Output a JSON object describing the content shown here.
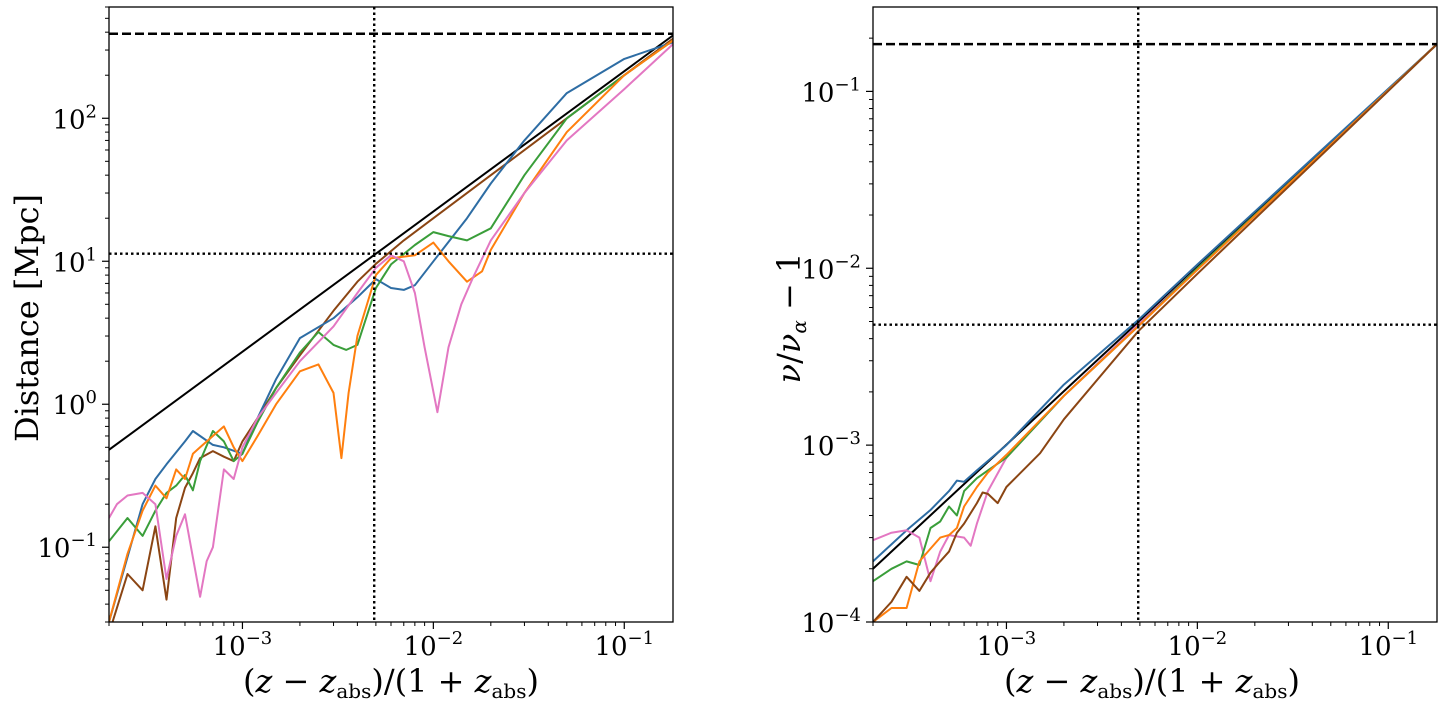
{
  "chart_data": [
    {
      "type": "line",
      "xscale": "log",
      "yscale": "log",
      "xlim": [
        0.0002,
        0.18
      ],
      "ylim": [
        0.03,
        600
      ],
      "xlabel": "(z − z_abs)/(1 + z_abs)",
      "ylabel": "Distance [Mpc]",
      "xticks": [
        {
          "value": 0.001,
          "label": "10−3",
          "base": "10",
          "exp": "−3"
        },
        {
          "value": 0.01,
          "label": "10−2",
          "base": "10",
          "exp": "−2"
        },
        {
          "value": 0.1,
          "label": "10−1",
          "base": "10",
          "exp": "−1"
        }
      ],
      "yticks": [
        {
          "value": 0.1,
          "label": "10−1",
          "base": "10",
          "exp": "−1"
        },
        {
          "value": 1,
          "label": "100",
          "base": "10",
          "exp": "0"
        },
        {
          "value": 10,
          "label": "101",
          "base": "10",
          "exp": "1"
        },
        {
          "value": 100,
          "label": "102",
          "base": "10",
          "exp": "2"
        }
      ],
      "hlines": [
        {
          "y": 390,
          "style": "dashed"
        },
        {
          "y": 11.3,
          "style": "dotted"
        }
      ],
      "vlines": [
        {
          "x": 0.0049,
          "style": "dotted"
        }
      ],
      "series": [
        {
          "name": "black",
          "color": "#000000",
          "x": [
            0.0002,
            0.18
          ],
          "y": [
            0.48,
            380
          ]
        },
        {
          "name": "brown",
          "color": "#8B4513",
          "x": [
            0.0002,
            0.00025,
            0.0003,
            0.00035,
            0.0004,
            0.00045,
            0.0005,
            0.00055,
            0.0006,
            0.0007,
            0.0008,
            0.0009,
            0.001,
            0.0012,
            0.0015,
            0.002,
            0.003,
            0.004,
            0.005,
            0.007,
            0.01,
            0.02,
            0.05,
            0.1,
            0.18
          ],
          "y": [
            0.025,
            0.065,
            0.05,
            0.14,
            0.043,
            0.16,
            0.26,
            0.33,
            0.42,
            0.47,
            0.43,
            0.4,
            0.55,
            0.8,
            1.3,
            2.2,
            4.5,
            7.2,
            9.6,
            14,
            20,
            40,
            100,
            200,
            360
          ]
        },
        {
          "name": "blue",
          "color": "#2E6DA4",
          "x": [
            0.0002,
            0.0003,
            0.00035,
            0.0004,
            0.0005,
            0.00055,
            0.0006,
            0.0007,
            0.0008,
            0.001,
            0.0012,
            0.0015,
            0.002,
            0.003,
            0.004,
            0.005,
            0.006,
            0.007,
            0.008,
            0.01,
            0.015,
            0.02,
            0.03,
            0.05,
            0.1,
            0.18
          ],
          "y": [
            0.03,
            0.2,
            0.3,
            0.38,
            0.55,
            0.65,
            0.6,
            0.52,
            0.5,
            0.45,
            0.8,
            1.5,
            2.9,
            4.0,
            5.6,
            7.5,
            6.5,
            6.3,
            6.8,
            10,
            20,
            35,
            70,
            150,
            260,
            340
          ]
        },
        {
          "name": "green",
          "color": "#3A9E3A",
          "x": [
            0.0002,
            0.00025,
            0.0003,
            0.00035,
            0.0004,
            0.00045,
            0.0005,
            0.00055,
            0.0006,
            0.0007,
            0.0008,
            0.0009,
            0.001,
            0.0012,
            0.0015,
            0.002,
            0.0025,
            0.003,
            0.0035,
            0.004,
            0.005,
            0.006,
            0.008,
            0.01,
            0.012,
            0.015,
            0.02,
            0.03,
            0.05,
            0.1,
            0.18
          ],
          "y": [
            0.11,
            0.16,
            0.12,
            0.18,
            0.24,
            0.27,
            0.32,
            0.25,
            0.4,
            0.65,
            0.55,
            0.4,
            0.45,
            0.75,
            1.3,
            2.3,
            3.2,
            2.6,
            2.4,
            2.6,
            6.5,
            9.5,
            13,
            16,
            15,
            14,
            17,
            40,
            100,
            200,
            350
          ]
        },
        {
          "name": "orange",
          "color": "#FF7F0E",
          "x": [
            0.0002,
            0.00025,
            0.0003,
            0.00035,
            0.0004,
            0.00045,
            0.0005,
            0.00055,
            0.0006,
            0.0007,
            0.0008,
            0.0009,
            0.001,
            0.0012,
            0.0015,
            0.002,
            0.0025,
            0.003,
            0.0033,
            0.0036,
            0.004,
            0.005,
            0.006,
            0.008,
            0.01,
            0.012,
            0.015,
            0.018,
            0.02,
            0.03,
            0.05,
            0.1,
            0.18
          ],
          "y": [
            0.03,
            0.09,
            0.18,
            0.27,
            0.22,
            0.35,
            0.3,
            0.45,
            0.5,
            0.6,
            0.7,
            0.5,
            0.4,
            0.6,
            1.0,
            1.7,
            1.9,
            1.2,
            0.42,
            1.2,
            3.0,
            8.0,
            10.5,
            11,
            13.5,
            10,
            7.2,
            8.5,
            12,
            30,
            80,
            200,
            350
          ]
        },
        {
          "name": "pink",
          "color": "#E377C2",
          "x": [
            0.0002,
            0.00022,
            0.00025,
            0.0003,
            0.00035,
            0.0004,
            0.00045,
            0.0005,
            0.0006,
            0.00065,
            0.0007,
            0.0008,
            0.0009,
            0.001,
            0.0012,
            0.0015,
            0.002,
            0.003,
            0.004,
            0.005,
            0.006,
            0.007,
            0.008,
            0.009,
            0.0105,
            0.012,
            0.014,
            0.016,
            0.02,
            0.03,
            0.05,
            0.1,
            0.18
          ],
          "y": [
            0.16,
            0.2,
            0.23,
            0.24,
            0.2,
            0.06,
            0.12,
            0.17,
            0.045,
            0.08,
            0.1,
            0.35,
            0.3,
            0.5,
            0.8,
            1.2,
            2.0,
            3.5,
            6.0,
            9.0,
            11,
            10,
            6.0,
            2.5,
            0.88,
            2.5,
            5.0,
            7.5,
            14,
            30,
            70,
            160,
            330
          ]
        }
      ]
    },
    {
      "type": "line",
      "xscale": "log",
      "yscale": "log",
      "xlim": [
        0.0002,
        0.18
      ],
      "ylim": [
        0.0001,
        0.3
      ],
      "xlabel": "(z − z_abs)/(1 + z_abs)",
      "ylabel": "ν/ν_α − 1",
      "xticks": [
        {
          "value": 0.001,
          "label": "10−3",
          "base": "10",
          "exp": "−3"
        },
        {
          "value": 0.01,
          "label": "10−2",
          "base": "10",
          "exp": "−2"
        },
        {
          "value": 0.1,
          "label": "10−1",
          "base": "10",
          "exp": "−1"
        }
      ],
      "yticks": [
        {
          "value": 0.0001,
          "label": "10−4",
          "base": "10",
          "exp": "−4"
        },
        {
          "value": 0.001,
          "label": "10−3",
          "base": "10",
          "exp": "−3"
        },
        {
          "value": 0.01,
          "label": "10−2",
          "base": "10",
          "exp": "−2"
        },
        {
          "value": 0.1,
          "label": "10−1",
          "base": "10",
          "exp": "−1"
        }
      ],
      "hlines": [
        {
          "y": 0.185,
          "style": "dashed"
        },
        {
          "y": 0.0048,
          "style": "dotted"
        }
      ],
      "vlines": [
        {
          "x": 0.0049,
          "style": "dotted"
        }
      ],
      "series": [
        {
          "name": "black",
          "color": "#000000",
          "x": [
            0.0002,
            0.18
          ],
          "y": [
            0.0002,
            0.185
          ]
        },
        {
          "name": "blue",
          "color": "#2E6DA4",
          "x": [
            0.0002,
            0.0003,
            0.0004,
            0.0005,
            0.00055,
            0.0006,
            0.0007,
            0.001,
            0.002,
            0.0049,
            0.01,
            0.05,
            0.18
          ],
          "y": [
            0.00022,
            0.00033,
            0.00043,
            0.00055,
            0.00063,
            0.00062,
            0.00072,
            0.001,
            0.0022,
            0.0051,
            0.0105,
            0.052,
            0.185
          ]
        },
        {
          "name": "pink",
          "color": "#E377C2",
          "x": [
            0.0002,
            0.00025,
            0.0003,
            0.00035,
            0.0004,
            0.00045,
            0.0005,
            0.0006,
            0.00065,
            0.0007,
            0.0008,
            0.001,
            0.002,
            0.0049,
            0.01,
            0.05,
            0.18
          ],
          "y": [
            0.00029,
            0.00032,
            0.00033,
            0.0003,
            0.00017,
            0.00025,
            0.00031,
            0.0003,
            0.00027,
            0.00036,
            0.00055,
            0.00085,
            0.0019,
            0.0048,
            0.01,
            0.05,
            0.185
          ]
        },
        {
          "name": "green",
          "color": "#3A9E3A",
          "x": [
            0.0002,
            0.00025,
            0.0003,
            0.00035,
            0.0004,
            0.00045,
            0.0005,
            0.00055,
            0.0006,
            0.0007,
            0.0008,
            0.001,
            0.002,
            0.0049,
            0.01,
            0.05,
            0.18
          ],
          "y": [
            0.00017,
            0.0002,
            0.00022,
            0.00021,
            0.00034,
            0.00037,
            0.00045,
            0.0004,
            0.00055,
            0.00065,
            0.00072,
            0.00085,
            0.0019,
            0.0047,
            0.01,
            0.05,
            0.185
          ]
        },
        {
          "name": "orange",
          "color": "#FF7F0E",
          "x": [
            0.0002,
            0.00025,
            0.0003,
            0.00035,
            0.0004,
            0.00045,
            0.0005,
            0.00055,
            0.0006,
            0.0007,
            0.0008,
            0.001,
            0.002,
            0.0049,
            0.01,
            0.05,
            0.18
          ],
          "y": [
            0.0001,
            0.00012,
            0.00012,
            0.00022,
            0.00026,
            0.0003,
            0.00031,
            0.00034,
            0.00045,
            0.00058,
            0.0007,
            0.00088,
            0.0019,
            0.0047,
            0.0098,
            0.05,
            0.185
          ]
        },
        {
          "name": "brown",
          "color": "#8B4513",
          "x": [
            0.0002,
            0.00025,
            0.0003,
            0.00035,
            0.0004,
            0.00045,
            0.0005,
            0.00055,
            0.0006,
            0.0007,
            0.00075,
            0.0008,
            0.0009,
            0.001,
            0.0015,
            0.002,
            0.0049,
            0.01,
            0.05,
            0.18
          ],
          "y": [
            0.0001,
            0.00013,
            0.00018,
            0.00015,
            0.00019,
            0.00022,
            0.00025,
            0.00032,
            0.00036,
            0.00047,
            0.00054,
            0.00053,
            0.00047,
            0.00058,
            0.0009,
            0.0014,
            0.0044,
            0.0093,
            0.049,
            0.185
          ]
        }
      ]
    }
  ]
}
